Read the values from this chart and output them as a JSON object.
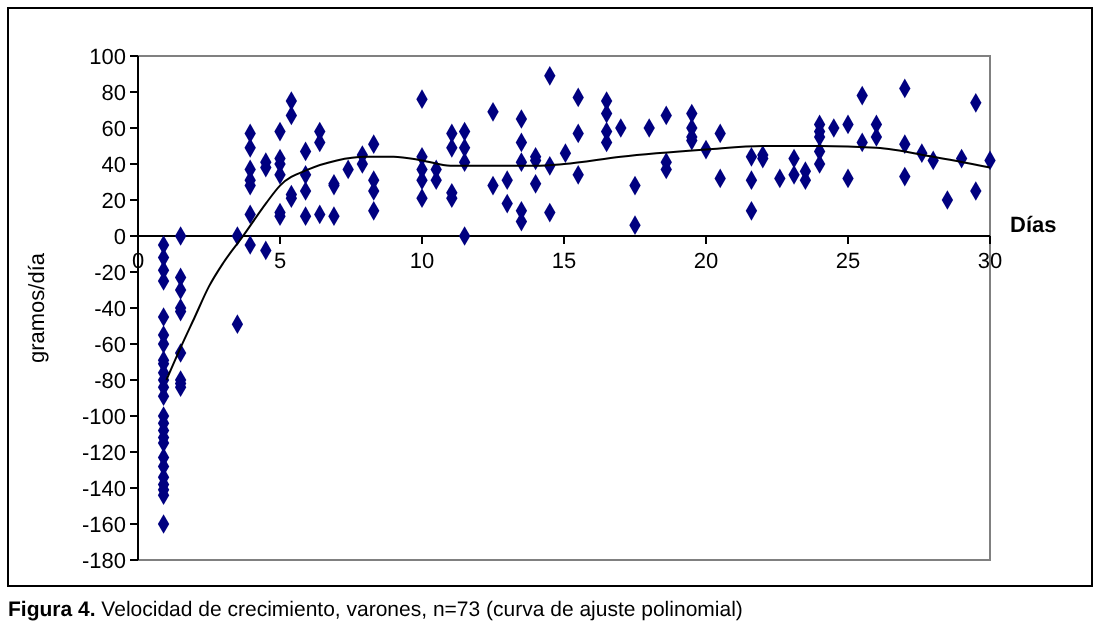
{
  "chart_data": {
    "type": "scatter",
    "xlabel": "Días",
    "ylabel": "gramos/día",
    "annotations": [
      "Figura 4. Velocidad de crecimiento, varones, n=73 (curva de ajuste polinomial)"
    ],
    "xlim": [
      0,
      30
    ],
    "ylim": [
      -180,
      100
    ],
    "xticks": [
      0,
      5,
      10,
      15,
      20,
      25,
      30
    ],
    "yticks": [
      -180,
      -160,
      -140,
      -120,
      -100,
      -80,
      -60,
      -40,
      -20,
      0,
      20,
      40,
      60,
      80,
      100
    ],
    "grid": false,
    "series": [
      {
        "color": "#000080",
        "marker": "diamond",
        "x": [
          0.9,
          0.9,
          0.9,
          0.9,
          0.9,
          0.9,
          0.9,
          0.9,
          0.9,
          0.9,
          0.9,
          0.9,
          0.9,
          0.9,
          0.9,
          0.9,
          0.9,
          0.9,
          0.9,
          0.9,
          0.9,
          0.9,
          0.9,
          0.9,
          0.9,
          1.5,
          1.5,
          1.5,
          1.5,
          1.5,
          1.5,
          1.5,
          1.5,
          1.5,
          3.5,
          3.5,
          3.95,
          3.95,
          3.95,
          3.95,
          3.95,
          3.95,
          3.95,
          4.5,
          4.5,
          4.5,
          5,
          5,
          5,
          5,
          5,
          5,
          5.4,
          5.4,
          5.4,
          5.4,
          5.9,
          5.9,
          5.9,
          5.9,
          6.4,
          6.4,
          6.4,
          6.9,
          6.9,
          6.9,
          7.4,
          7.9,
          7.9,
          8.3,
          8.3,
          8.3,
          8.3,
          10,
          10,
          10,
          10,
          10,
          10.5,
          10.5,
          11.05,
          11.05,
          11.05,
          11.05,
          11.5,
          11.5,
          11.5,
          11.5,
          12.5,
          12.5,
          13,
          13,
          13.5,
          13.5,
          13.5,
          13.5,
          13.5,
          14,
          14,
          14,
          14.5,
          14.5,
          14.5,
          15.05,
          15.5,
          15.5,
          15.5,
          16.5,
          16.5,
          16.5,
          16.5,
          17,
          17.5,
          17.5,
          18,
          18.6,
          18.6,
          18.6,
          19.5,
          19.5,
          19.5,
          19.5,
          20,
          20.5,
          20.5,
          21.6,
          21.6,
          21.6,
          22,
          22,
          22.6,
          23.1,
          23.1,
          23.5,
          23.5,
          24,
          24,
          24,
          24,
          24,
          24.5,
          25,
          25,
          25.5,
          25.5,
          26,
          26,
          27,
          27,
          27,
          27.6,
          28,
          28.5,
          29,
          29.5,
          29.5,
          30
        ],
        "values": [
          -5,
          -12,
          -19,
          -25,
          -45,
          -55,
          -60,
          -69,
          -71,
          -76,
          -80,
          -84,
          -89,
          -100,
          -104,
          -108,
          -112,
          -115,
          -123,
          -128,
          -134,
          -138,
          -141,
          -144,
          -160,
          0,
          -23,
          -30,
          -40,
          -42,
          -65,
          -80,
          -82,
          -84,
          0,
          -49,
          57,
          49,
          37,
          31,
          28,
          12,
          -5,
          41,
          38,
          -8,
          58,
          43,
          40,
          34,
          13,
          11,
          75,
          67,
          23,
          21,
          47,
          34,
          25,
          11,
          58,
          52,
          12,
          29,
          28,
          11,
          37,
          45,
          40,
          51,
          31,
          25,
          14,
          76,
          44,
          37,
          31,
          21,
          37,
          31,
          57,
          49,
          24,
          21,
          58,
          49,
          41,
          0,
          69,
          28,
          31,
          18,
          65,
          52,
          41,
          14,
          8,
          44,
          42,
          29,
          89,
          39,
          13,
          46,
          77,
          57,
          34,
          75,
          68,
          58,
          52,
          60,
          28,
          6,
          60,
          67,
          41,
          37,
          68,
          60,
          55,
          53,
          48,
          57,
          32,
          44,
          31,
          14,
          45,
          43,
          32,
          43,
          34,
          36,
          31,
          62,
          58,
          55,
          47,
          40,
          60,
          62,
          32,
          78,
          52,
          62,
          55,
          82,
          51,
          33,
          46,
          42,
          20,
          43,
          74,
          25,
          42
        ]
      },
      {
        "type": "line",
        "color": "#000000",
        "marker": "none",
        "x": [
          1,
          1.5,
          2,
          2.5,
          3,
          3.7,
          4.5,
          5,
          6,
          7,
          8,
          9,
          10,
          11,
          12,
          14,
          15,
          17,
          20,
          22,
          24,
          26,
          28,
          30
        ],
        "values": [
          -80,
          -62,
          -45,
          -28,
          -15,
          0,
          18,
          28,
          37,
          42,
          44,
          44,
          42,
          39,
          39,
          39,
          40,
          44,
          48,
          50,
          50,
          49,
          44,
          38
        ]
      }
    ]
  }
}
